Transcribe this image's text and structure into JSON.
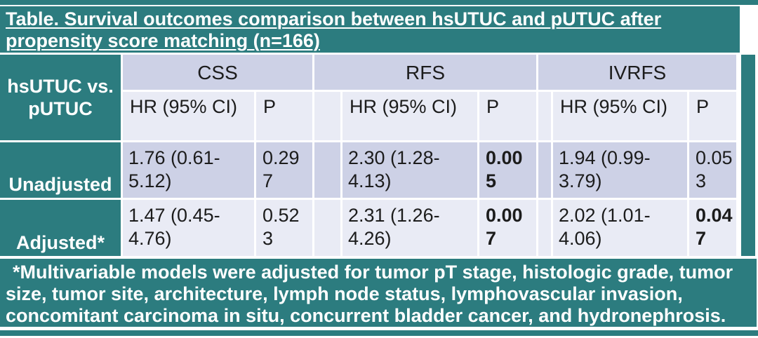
{
  "title": "Table. Survival outcomes comparison between hsUTUC and pUTUC after propensity score matching (n=166)",
  "colors": {
    "teal": "#2c7c7f",
    "band_dark": "#cdd1e6",
    "band_light": "#e9ebf5",
    "text": "#1c1c1c",
    "title_text": "#ffffff"
  },
  "table": {
    "corner_label": "hsUTUC vs. pUTUC",
    "groups": {
      "css": "CSS",
      "rfs": "RFS",
      "ivrfs": "IVRFS"
    },
    "subheaders": {
      "hr": "HR (95% CI)",
      "p": "P"
    },
    "rows": [
      {
        "label": "Unadjusted",
        "css": {
          "hr": "1.76 (0.61-5.12)",
          "p": "0.297",
          "p_bold": false
        },
        "rfs": {
          "hr": "2.30 (1.28-4.13)",
          "p": "0.005",
          "p_bold": true
        },
        "ivrfs": {
          "hr": "1.94 (0.99-3.79)",
          "p": "0.053",
          "p_bold": false
        }
      },
      {
        "label": "Adjusted*",
        "css": {
          "hr": "1.47 (0.45-4.76)",
          "p": "0.523",
          "p_bold": false
        },
        "rfs": {
          "hr": "2.31 (1.26-4.26)",
          "p": "0.007",
          "p_bold": true
        },
        "ivrfs": {
          "hr": "2.02 (1.01-4.06)",
          "p": "0.047",
          "p_bold": true
        }
      }
    ]
  },
  "footnote": "*Multivariable models were adjusted for tumor pT stage, histologic grade, tumor size, tumor site, architecture, lymph node status, lymphovascular invasion, concomitant carcinoma in situ, concurrent bladder cancer, and hydronephrosis.",
  "chart_data": {
    "type": "table",
    "title": "Table. Survival outcomes comparison between hsUTUC and pUTUC after propensity score matching (n=166)",
    "columns": [
      "hsUTUC vs. pUTUC",
      "CSS HR (95% CI)",
      "CSS P",
      "RFS HR (95% CI)",
      "RFS P",
      "IVRFS HR (95% CI)",
      "IVRFS P"
    ],
    "rows": [
      [
        "Unadjusted",
        "1.76 (0.61-5.12)",
        "0.297",
        "2.30 (1.28-4.13)",
        "0.005",
        "1.94 (0.99-3.79)",
        "0.053"
      ],
      [
        "Adjusted*",
        "1.47 (0.45-4.76)",
        "0.523",
        "2.31 (1.26-4.26)",
        "0.007",
        "2.02 (1.01-4.06)",
        "0.047"
      ]
    ]
  }
}
